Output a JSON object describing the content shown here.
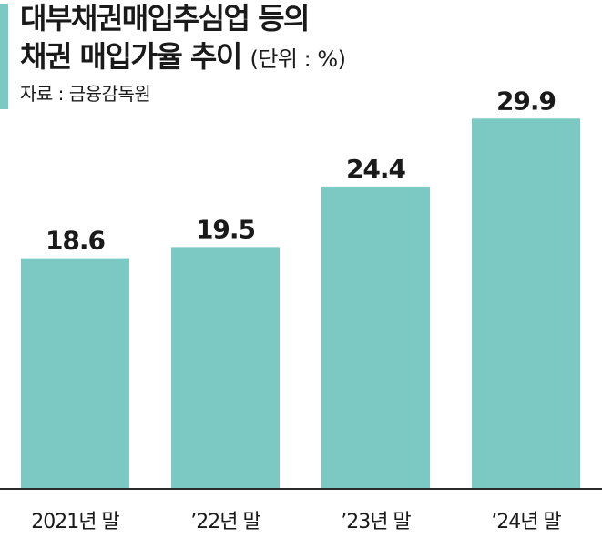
{
  "header": {
    "title_line1": "대부채권매입추심업 등의",
    "title_line2": "채권 매입가율 추이",
    "unit": "(단위 : %)",
    "source": "자료 : 금융감독원"
  },
  "colors": {
    "bar": "#7cc8c2",
    "accent": "#7cc8c2",
    "text": "#1a1a1a"
  },
  "chart_data": {
    "type": "bar",
    "title": "대부채권매입추심업 등의 채권 매입가율 추이",
    "unit": "%",
    "categories": [
      "2021년 말",
      "’22년 말",
      "’23년 말",
      "’24년 말"
    ],
    "values": [
      18.6,
      19.5,
      24.4,
      29.9
    ],
    "value_labels": [
      "18.6",
      "19.5",
      "24.4",
      "29.9"
    ],
    "xlabel": "",
    "ylabel": "",
    "ylim": [
      0,
      30
    ],
    "grid": false,
    "legend": "none"
  }
}
